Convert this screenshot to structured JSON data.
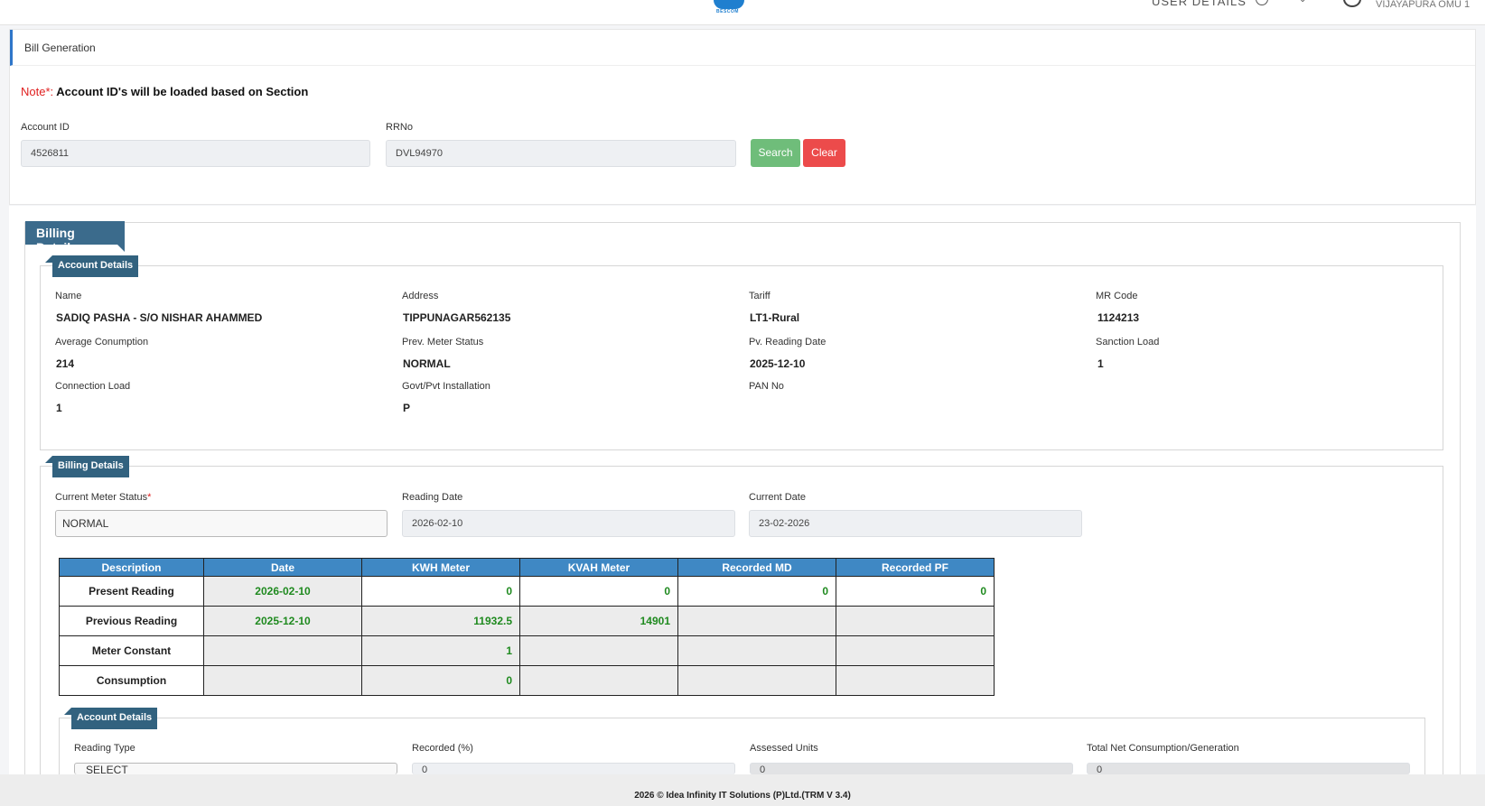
{
  "header": {
    "logo_text": "BESCOM",
    "user_details_label": "USER DETAILS",
    "office_name": "VIJAYAPURA OMU 1"
  },
  "page": {
    "title": "Bill Generation",
    "note_prefix": "Note*:",
    "note_text": "Account ID's will be loaded based on Section"
  },
  "search": {
    "account_id_label": "Account ID",
    "account_id_value": "4526811",
    "rrno_label": "RRNo",
    "rrno_value": "DVL94970",
    "search_label": "Search",
    "clear_label": "Clear"
  },
  "billing": {
    "section_title": "Billing Details",
    "account_details": {
      "title": "Account Details",
      "fields": [
        {
          "label": "Name",
          "value": "SADIQ PASHA - S/O NISHAR AHAMMED"
        },
        {
          "label": "Address",
          "value": "TIPPUNAGAR562135"
        },
        {
          "label": "Tariff",
          "value": "LT1-Rural"
        },
        {
          "label": "MR Code",
          "value": "1124213"
        },
        {
          "label": "Average Conumption",
          "value": "214"
        },
        {
          "label": "Prev. Meter Status",
          "value": "NORMAL"
        },
        {
          "label": "Pv. Reading Date",
          "value": "2025-12-10"
        },
        {
          "label": "Sanction Load",
          "value": "1"
        },
        {
          "label": "Connection Load",
          "value": "1"
        },
        {
          "label": "Govt/Pvt Installation",
          "value": "P"
        },
        {
          "label": "PAN No",
          "value": ""
        }
      ]
    },
    "billing_details": {
      "title": "Billing Details",
      "meter_status_label": "Current Meter Status",
      "meter_status_required": "*",
      "meter_status_value": "NORMAL",
      "reading_date_label": "Reading Date",
      "reading_date_value": "2026-02-10",
      "current_date_label": "Current Date",
      "current_date_value": "23-02-2026"
    },
    "readings_table": {
      "headers": [
        "Description",
        "Date",
        "KWH Meter",
        "KVAH Meter",
        "Recorded MD",
        "Recorded PF"
      ],
      "rows": [
        {
          "desc": "Present Reading",
          "date": "2026-02-10",
          "kwh": "0",
          "kvah": "0",
          "md": "0",
          "pf": "0"
        },
        {
          "desc": "Previous Reading",
          "date": "2025-12-10",
          "kwh": "11932.5",
          "kvah": "14901",
          "md": "",
          "pf": ""
        },
        {
          "desc": "Meter Constant",
          "date": "",
          "kwh": "1",
          "kvah": "",
          "md": "",
          "pf": ""
        },
        {
          "desc": "Consumption",
          "date": "",
          "kwh": "0",
          "kvah": "",
          "md": "",
          "pf": ""
        }
      ]
    },
    "sub_account": {
      "title": "Account Details",
      "reading_type_label": "Reading Type",
      "reading_type_value": "SELECT",
      "recorded_label": "Recorded (%)",
      "recorded_value": "0",
      "assessed_label": "Assessed Units",
      "assessed_value": "0",
      "net_label": "Total Net Consumption/Generation",
      "net_value": "0"
    }
  },
  "footer": {
    "text": "2026 © Idea Infinity IT Solutions (P)Ltd.(TRM V 3.4)"
  }
}
